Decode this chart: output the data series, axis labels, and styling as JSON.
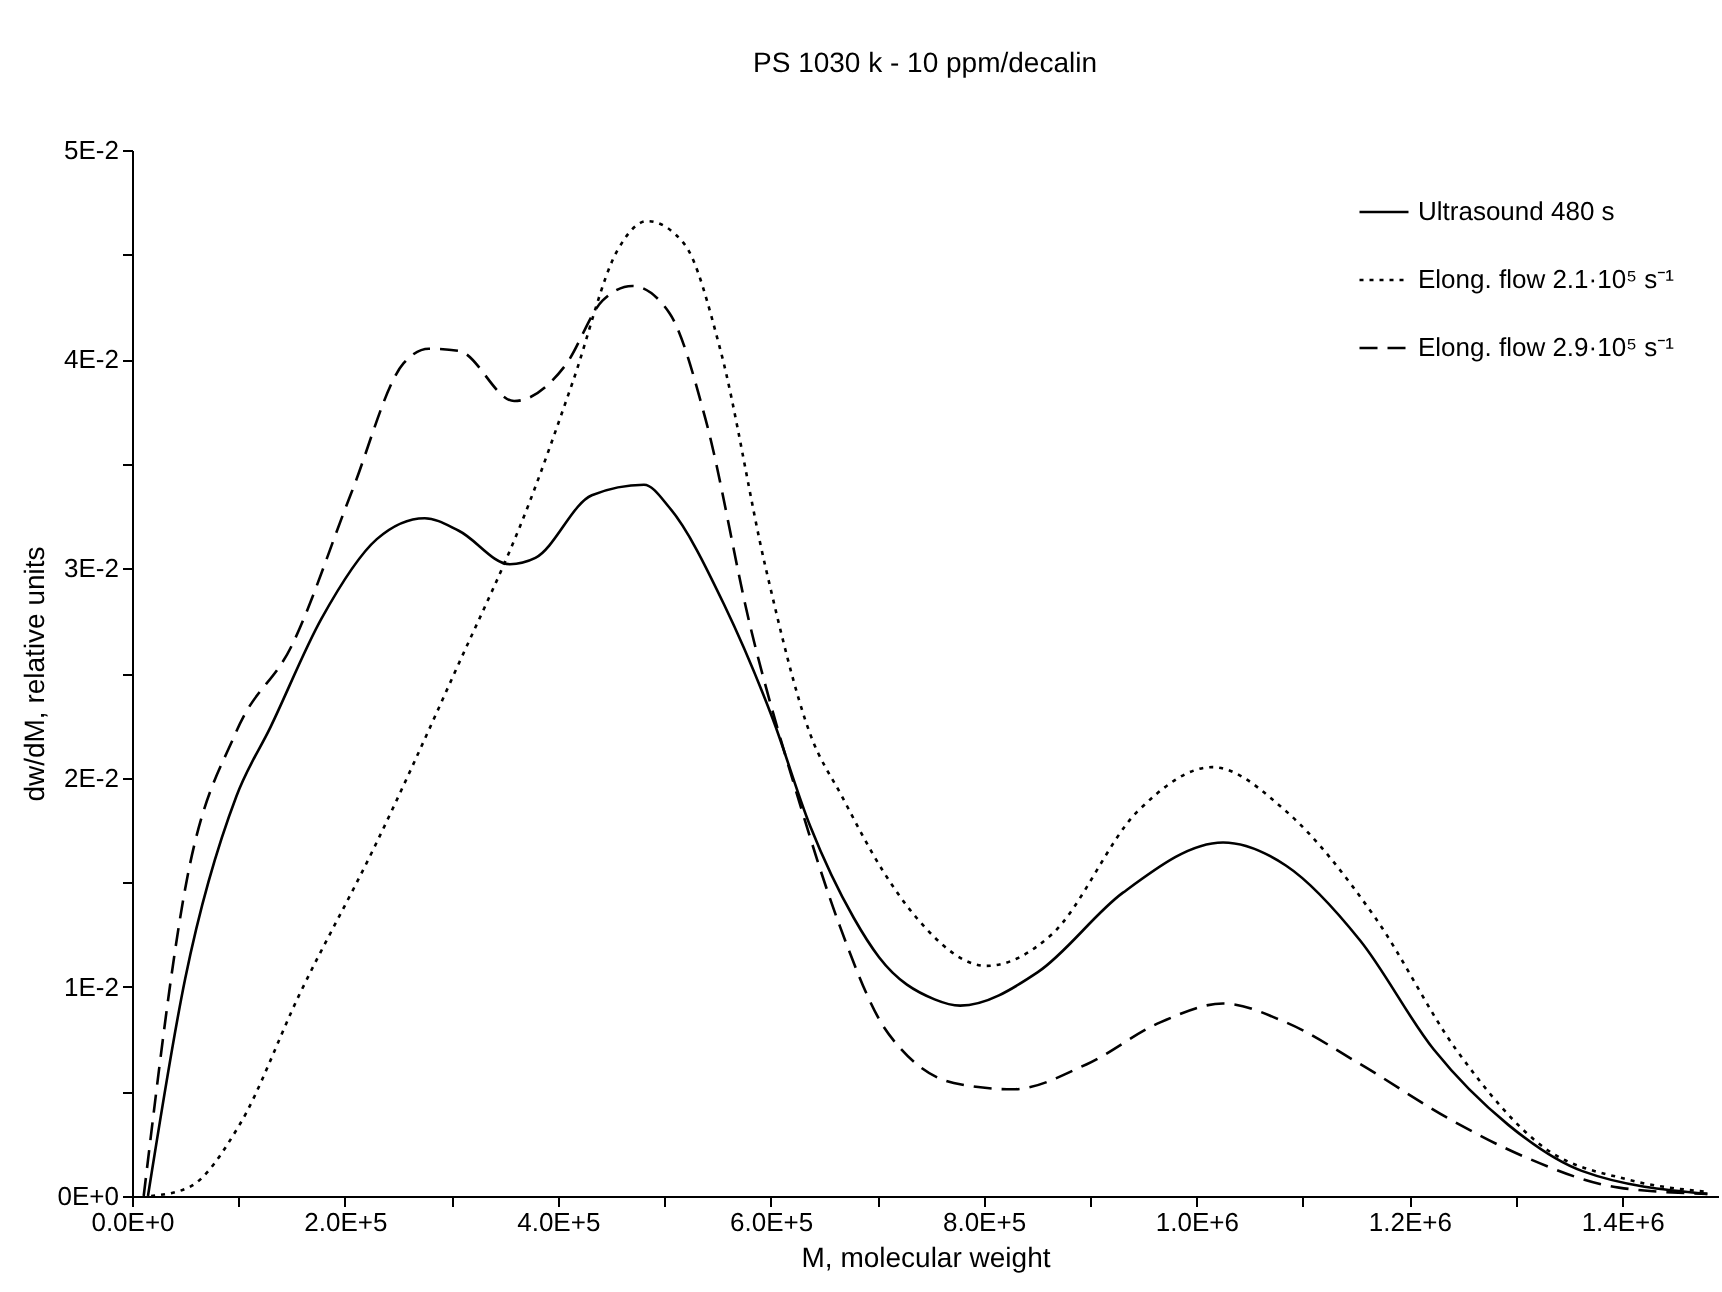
{
  "chart_data": {
    "type": "line",
    "title": "PS 1030 k - 10 ppm/decalin",
    "xlabel": "M, molecular weight",
    "ylabel": "dw/dM, relative units",
    "xlim": [
      0,
      1490000
    ],
    "ylim": [
      0,
      0.05
    ],
    "xticks": [
      {
        "value": 0,
        "label": "0.0E+0"
      },
      {
        "value": 100000,
        "label": null
      },
      {
        "value": 200000,
        "label": "2.0E+5"
      },
      {
        "value": 300000,
        "label": null
      },
      {
        "value": 400000,
        "label": "4.0E+5"
      },
      {
        "value": 500000,
        "label": null
      },
      {
        "value": 600000,
        "label": "6.0E+5"
      },
      {
        "value": 700000,
        "label": null
      },
      {
        "value": 800000,
        "label": "8.0E+5"
      },
      {
        "value": 900000,
        "label": null
      },
      {
        "value": 1000000,
        "label": "1.0E+6"
      },
      {
        "value": 1100000,
        "label": null
      },
      {
        "value": 1200000,
        "label": "1.2E+6"
      },
      {
        "value": 1300000,
        "label": null
      },
      {
        "value": 1400000,
        "label": "1.4E+6"
      }
    ],
    "yticks": [
      {
        "value": 0,
        "label": "0E+0"
      },
      {
        "value": 0.005,
        "label": null
      },
      {
        "value": 0.01,
        "label": "1E-2"
      },
      {
        "value": 0.015,
        "label": null
      },
      {
        "value": 0.02,
        "label": "2E-2"
      },
      {
        "value": 0.025,
        "label": null
      },
      {
        "value": 0.03,
        "label": "3E-2"
      },
      {
        "value": 0.035,
        "label": null
      },
      {
        "value": 0.04,
        "label": "4E-2"
      },
      {
        "value": 0.045,
        "label": null
      },
      {
        "value": 0.05,
        "label": "5E-2"
      }
    ],
    "grid": false,
    "legend": "top right",
    "marker": "none",
    "series": [
      {
        "name": "Ultrasound 480 s",
        "color": "#000000",
        "line_style": "solid",
        "x": [
          15000,
          50000,
          98000,
          130000,
          178000,
          230000,
          275000,
          307000,
          355000,
          379000,
          432000,
          481000,
          505000,
          556000,
          602000,
          637000,
          678000,
          702000,
          754000,
          778000,
          851000,
          931000,
          1025000,
          1084000,
          1154000,
          1223000,
          1293000,
          1362000,
          1480000
        ],
        "values": [
          0,
          0.0104,
          0.0191,
          0.0224,
          0.0276,
          0.0314,
          0.0324,
          0.0318,
          0.0302,
          0.0305,
          0.0335,
          0.034,
          0.0329,
          0.0283,
          0.0228,
          0.0177,
          0.0133,
          0.0114,
          0.0094,
          0.0091,
          0.0107,
          0.0145,
          0.0169,
          0.0158,
          0.0122,
          0.007,
          0.0034,
          0.0012,
          0.0001
        ]
      },
      {
        "name": "Elong. flow  2.1·10⁵ s⁻¹",
        "color": "#000000",
        "line_style": "dotted",
        "x": [
          18000,
          53000,
          101000,
          157000,
          227000,
          303000,
          373000,
          414000,
          456000,
          484000,
          519000,
          553000,
          595000,
          637000,
          667000,
          706000,
          737000,
          803000,
          864000,
          945000,
          1015000,
          1084000,
          1168000,
          1244000,
          1327000,
          1404000,
          1480000
        ],
        "values": [
          0,
          0.0004,
          0.0034,
          0.0096,
          0.0166,
          0.025,
          0.0331,
          0.0389,
          0.0452,
          0.0466,
          0.0455,
          0.0404,
          0.0301,
          0.0221,
          0.0191,
          0.0155,
          0.0133,
          0.011,
          0.0125,
          0.0184,
          0.0205,
          0.0184,
          0.0133,
          0.007,
          0.0023,
          0.0008,
          0.0002
        ]
      },
      {
        "name": "Elong. flow  2.9·10⁵ s⁻¹",
        "color": "#000000",
        "line_style": "dashed",
        "x": [
          11000,
          50000,
          98000,
          150000,
          206000,
          255000,
          279000,
          307000,
          359000,
          407000,
          442000,
          470000,
          505000,
          539000,
          581000,
          623000,
          665000,
          706000,
          723000,
          772000,
          827000,
          897000,
          966000,
          1025000,
          1084000,
          1154000,
          1237000,
          1307000,
          1397000,
          1480000
        ],
        "values": [
          0,
          0.0147,
          0.0222,
          0.0263,
          0.0336,
          0.0398,
          0.0405,
          0.0404,
          0.038,
          0.0397,
          0.0428,
          0.0435,
          0.0422,
          0.0371,
          0.0272,
          0.0195,
          0.0129,
          0.0081,
          0.007,
          0.0054,
          0.0051,
          0.0063,
          0.0083,
          0.0092,
          0.0083,
          0.0063,
          0.0037,
          0.0019,
          0.0004,
          0.0001
        ]
      }
    ]
  }
}
